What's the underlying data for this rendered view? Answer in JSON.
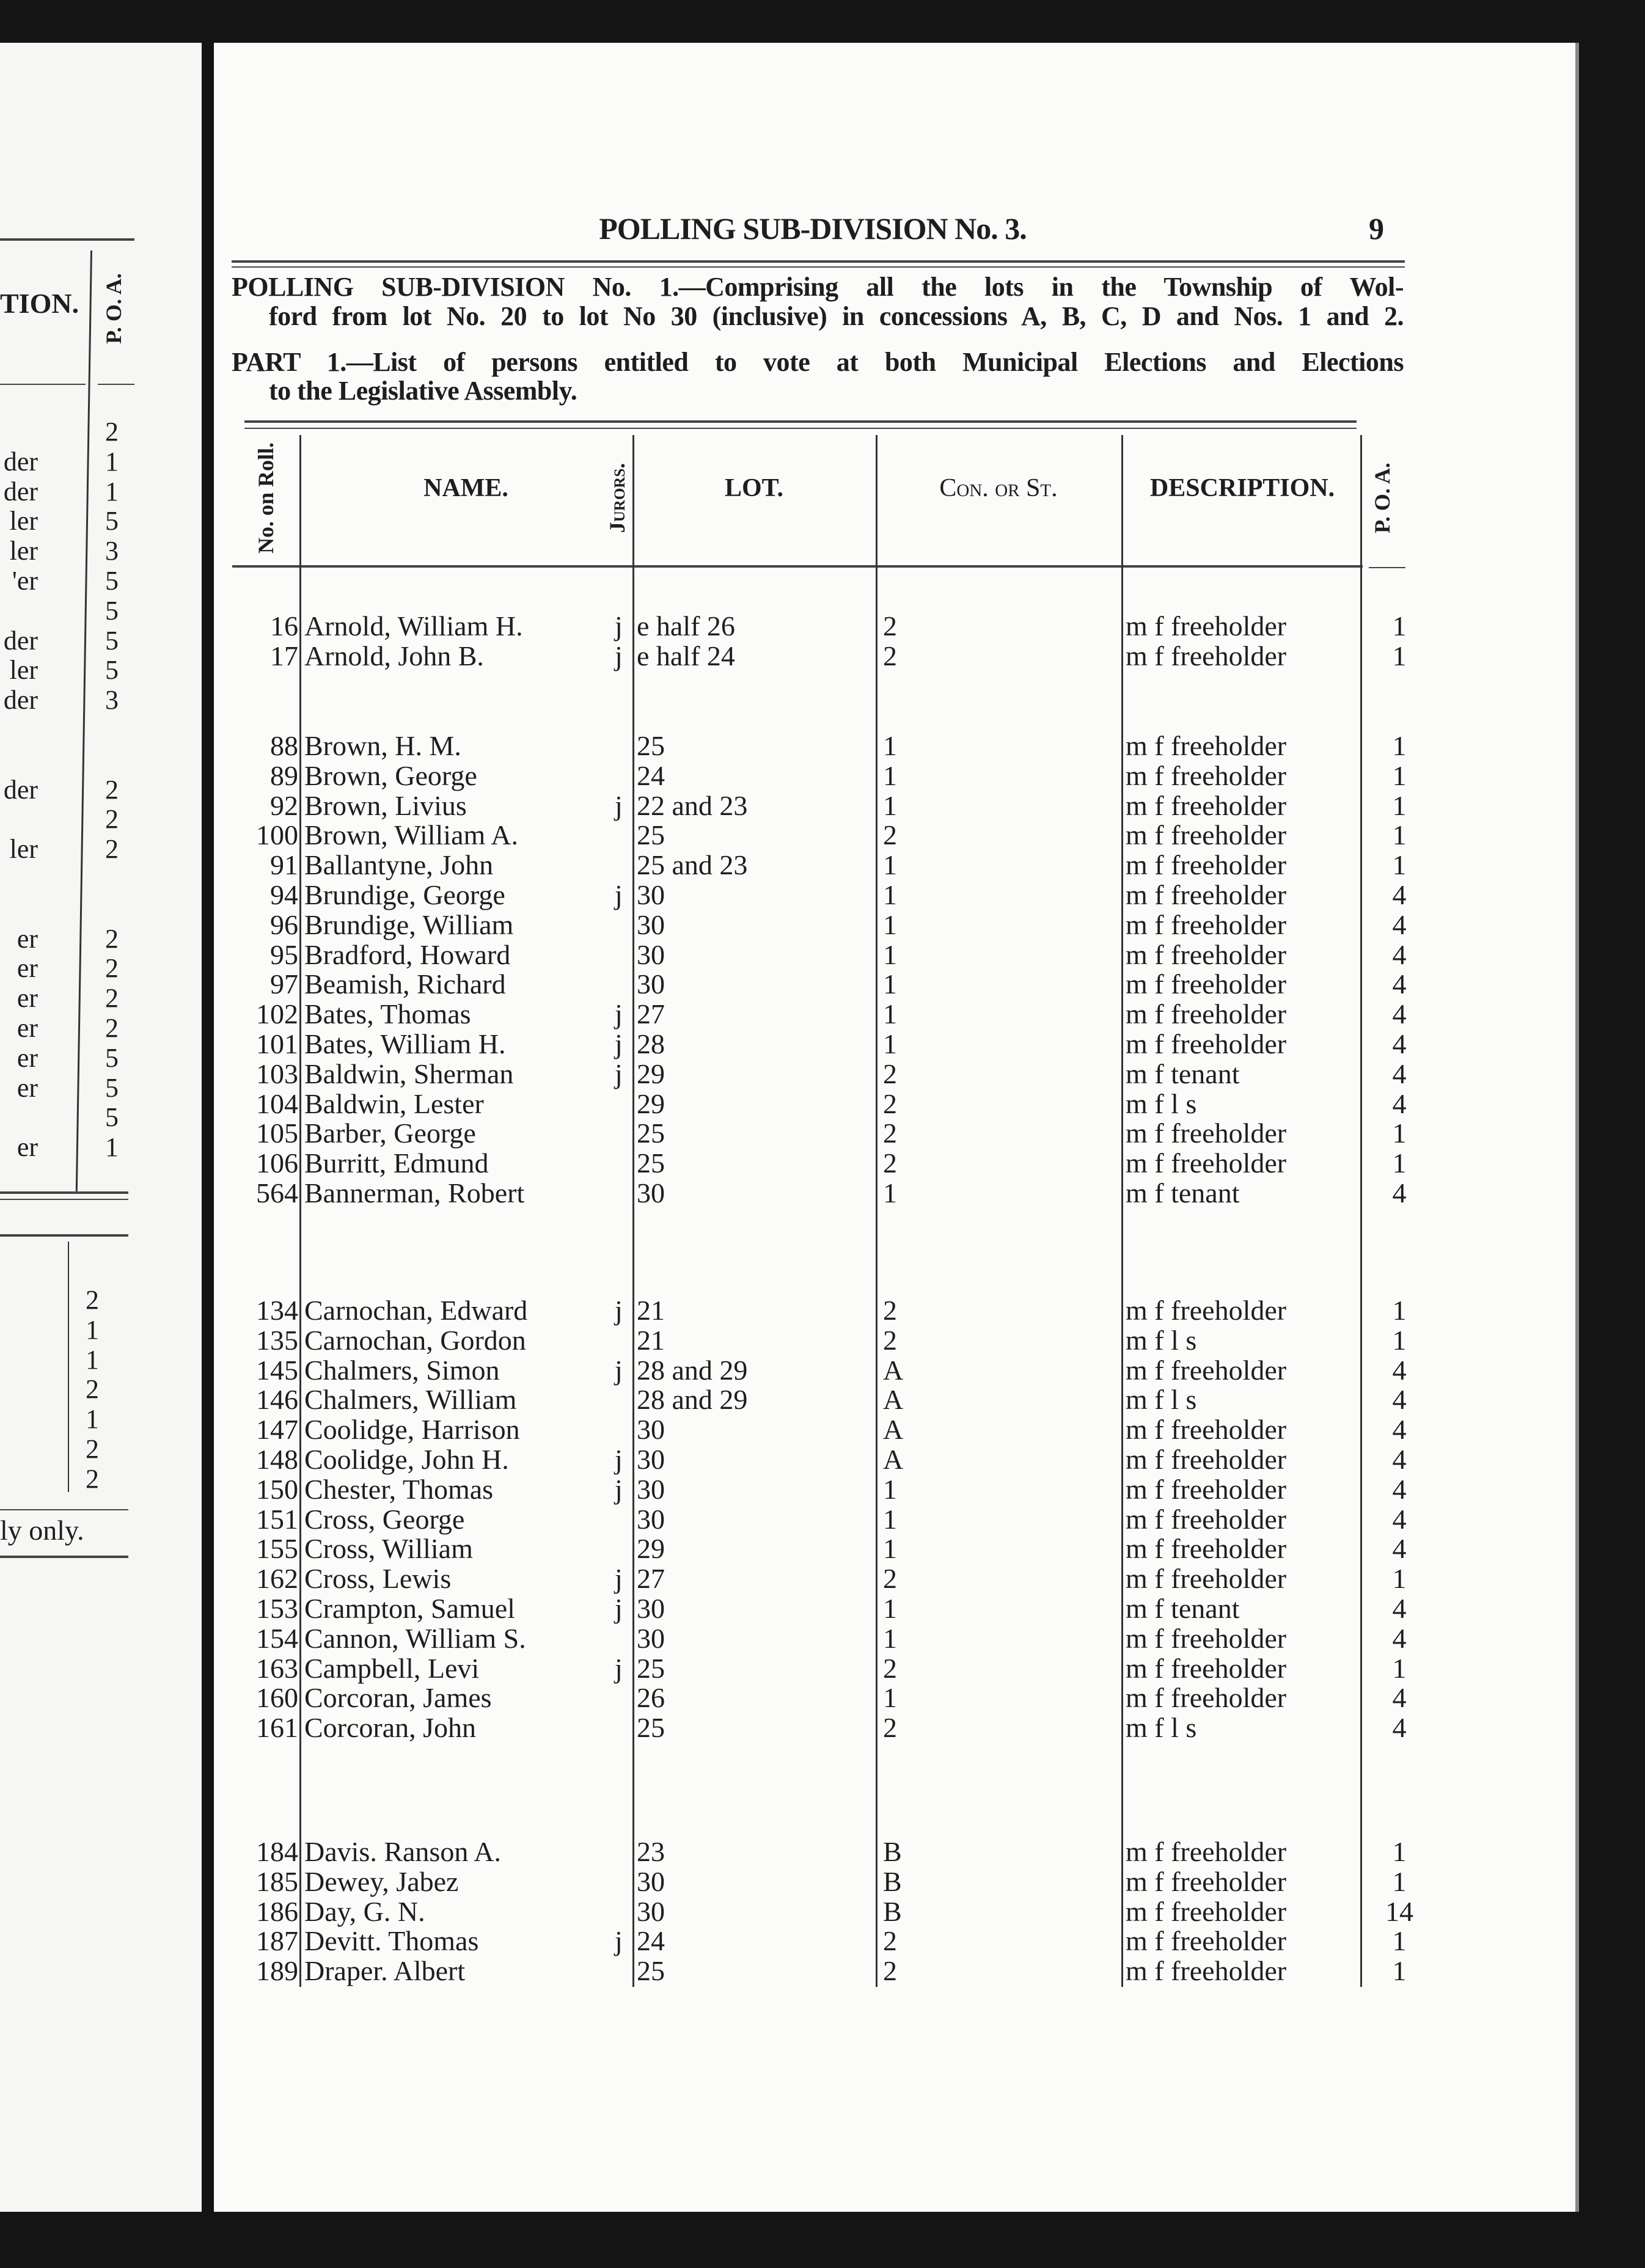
{
  "header": {
    "running_title": "POLLING SUB-DIVISION No. 3.",
    "page_number": "9"
  },
  "intro": {
    "line1": "POLLING SUB-DIVISION No. 1.—Comprising all the lots in the Township of Wol-",
    "line2": "ford from lot No. 20 to lot No 30 (inclusive) in concessions A, B, C, D and Nos. 1 and 2.",
    "line3": "PART 1.—List of persons entitled to vote at both Municipal Elections and Elections",
    "line4": "to the Legislative Assembly."
  },
  "table": {
    "headers": {
      "roll": "No. on Roll.",
      "name": "NAME.",
      "jurors": "Jurors.",
      "lot": "LOT.",
      "con": "Con. or St.",
      "description": "DESCRIPTION.",
      "poa": "P. O. A."
    },
    "groups": [
      [
        [
          "16",
          "Arnold, William H.",
          "j",
          "e half 26",
          "2",
          "m f freeholder",
          "1"
        ],
        [
          "17",
          "Arnold, John B.",
          "j",
          "e half 24",
          "2",
          "m f freeholder",
          "1"
        ]
      ],
      [
        [
          "88",
          "Brown, H. M.",
          "",
          "25",
          "1",
          "m f freeholder",
          "1"
        ],
        [
          "89",
          "Brown, George",
          "",
          "24",
          "1",
          "m f freeholder",
          "1"
        ],
        [
          "92",
          "Brown, Livius",
          "j",
          "22 and 23",
          "1",
          "m f freeholder",
          "1"
        ],
        [
          "100",
          "Brown, William A.",
          "",
          "25",
          "2",
          "m f freeholder",
          "1"
        ],
        [
          "91",
          "Ballantyne, John",
          "",
          "25 and 23",
          "1",
          "m f freeholder",
          "1"
        ],
        [
          "94",
          "Brundige, George",
          "j",
          "30",
          "1",
          "m f freeholder",
          "4"
        ],
        [
          "96",
          "Brundige, William",
          "",
          "30",
          "1",
          "m f freeholder",
          "4"
        ],
        [
          "95",
          "Bradford, Howard",
          "",
          "30",
          "1",
          "m f freeholder",
          "4"
        ],
        [
          "97",
          "Beamish, Richard",
          "",
          "30",
          "1",
          "m f freeholder",
          "4"
        ],
        [
          "102",
          "Bates, Thomas",
          "j",
          "27",
          "1",
          "m f freeholder",
          "4"
        ],
        [
          "101",
          "Bates, William H.",
          "j",
          "28",
          "1",
          "m f freeholder",
          "4"
        ],
        [
          "103",
          "Baldwin, Sherman",
          "j",
          "29",
          "2",
          "m f tenant",
          "4"
        ],
        [
          "104",
          "Baldwin, Lester",
          "",
          "29",
          "2",
          "m f l s",
          "4"
        ],
        [
          "105",
          "Barber, George",
          "",
          "25",
          "2",
          "m f freeholder",
          "1"
        ],
        [
          "106",
          "Burritt, Edmund",
          "",
          "25",
          "2",
          "m f freeholder",
          "1"
        ],
        [
          "564",
          "Bannerman, Robert",
          "",
          "30",
          "1",
          "m f tenant",
          "4"
        ]
      ],
      [
        [
          "134",
          "Carnochan, Edward",
          "j",
          "21",
          "2",
          "m f freeholder",
          "1"
        ],
        [
          "135",
          "Carnochan, Gordon",
          "",
          "21",
          "2",
          "m f l s",
          "1"
        ],
        [
          "145",
          "Chalmers, Simon",
          "j",
          "28 and 29",
          "A",
          "m f freeholder",
          "4"
        ],
        [
          "146",
          "Chalmers, William",
          "",
          "28 and 29",
          "A",
          "m f l s",
          "4"
        ],
        [
          "147",
          "Coolidge, Harrison",
          "",
          "30",
          "A",
          "m f freeholder",
          "4"
        ],
        [
          "148",
          "Coolidge, John H.",
          "j",
          "30",
          "A",
          "m f freeholder",
          "4"
        ],
        [
          "150",
          "Chester, Thomas",
          "j",
          "30",
          "1",
          "m f freeholder",
          "4"
        ],
        [
          "151",
          "Cross, George",
          "",
          "30",
          "1",
          "m f freeholder",
          "4"
        ],
        [
          "155",
          "Cross, William",
          "",
          "29",
          "1",
          "m f freeholder",
          "4"
        ],
        [
          "162",
          "Cross, Lewis",
          "j",
          "27",
          "2",
          "m f freeholder",
          "1"
        ],
        [
          "153",
          "Crampton, Samuel",
          "j",
          "30",
          "1",
          "m f tenant",
          "4"
        ],
        [
          "154",
          "Cannon, William S.",
          "",
          "30",
          "1",
          "m f freeholder",
          "4"
        ],
        [
          "163",
          "Campbell, Levi",
          "j",
          "25",
          "2",
          "m f freeholder",
          "1"
        ],
        [
          "160",
          "Corcoran, James",
          "",
          "26",
          "1",
          "m f freeholder",
          "4"
        ],
        [
          "161",
          "Corcoran, John",
          "",
          "25",
          "2",
          "m f l s",
          "4"
        ]
      ],
      [
        [
          "184",
          "Davis. Ranson A.",
          "",
          "23",
          "B",
          "m f freeholder",
          "1"
        ],
        [
          "185",
          "Dewey, Jabez",
          "",
          "30",
          "B",
          "m f freeholder",
          "1"
        ],
        [
          "186",
          "Day, G. N.",
          "",
          "30",
          "B",
          "m f freeholder",
          "14"
        ],
        [
          "187",
          "Devitt. Thomas",
          "j",
          "24",
          "2",
          "m f freeholder",
          "1"
        ],
        [
          "189",
          "Draper. Albert",
          "",
          "25",
          "2",
          "m f freeholder",
          "1"
        ]
      ]
    ]
  },
  "left_page": {
    "header_fragment": "TION.",
    "poa_header": "P. O. A.",
    "rows": [
      [
        "",
        "2"
      ],
      [
        "der",
        "1"
      ],
      [
        "der",
        "1"
      ],
      [
        "ler",
        "5"
      ],
      [
        "ler",
        "3"
      ],
      [
        "'er",
        "5"
      ],
      [
        "",
        "5"
      ],
      [
        "der",
        "5"
      ],
      [
        "ler",
        "5"
      ],
      [
        "der",
        "3"
      ],
      [
        "",
        ""
      ],
      [
        "",
        ""
      ],
      [
        "der",
        "2"
      ],
      [
        "",
        "2"
      ],
      [
        "ler",
        "2"
      ],
      [
        "",
        ""
      ],
      [
        "",
        ""
      ],
      [
        "er",
        "2"
      ],
      [
        "er",
        "2"
      ],
      [
        "er",
        "2"
      ],
      [
        "er",
        "2"
      ],
      [
        "er",
        "5"
      ],
      [
        "er",
        "5"
      ],
      [
        "",
        "5"
      ],
      [
        "er",
        "1"
      ]
    ],
    "box_values": [
      "2",
      "1",
      "1",
      "2",
      "1",
      "2",
      "2"
    ],
    "footer_fragment": "ly only."
  }
}
